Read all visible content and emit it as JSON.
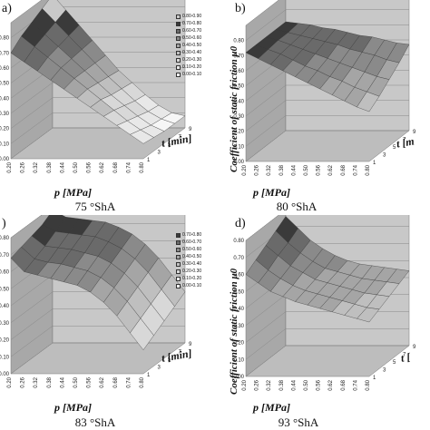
{
  "chart_data": [
    {
      "panel": "a)",
      "caption": "75 °ShA",
      "type": "surface",
      "xlabel": "p [MPa]",
      "ylabel": "",
      "zlabel": "",
      "p_ticks": [
        "0.20",
        "0.26",
        "0.32",
        "0.38",
        "0.44",
        "0.50",
        "0.56",
        "0.62",
        "0.68",
        "0.74",
        "0.80"
      ],
      "t_ticks": [
        "1",
        "3",
        "5",
        "7",
        "9"
      ],
      "z_ticks": [
        "0.00",
        "0.10",
        "0.20",
        "0.30",
        "0.40",
        "0.50",
        "0.60",
        "0.70",
        "0.80"
      ],
      "zlim": [
        0,
        0.9
      ],
      "legend": [
        "0.80-0.90",
        "0.70-0.80",
        "0.60-0.70",
        "0.50-0.60",
        "0.40-0.50",
        "0.30-0.40",
        "0.20-0.30",
        "0.10-0.20",
        "0.00-0.10"
      ],
      "surface": {
        "p": [
          0.2,
          0.26,
          0.32,
          0.38,
          0.44,
          0.5,
          0.56,
          0.62,
          0.68,
          0.74,
          0.8
        ],
        "t": [
          1,
          3,
          5,
          7,
          9
        ],
        "z_rows": [
          [
            0.7,
            0.64,
            0.58,
            0.52,
            0.46,
            0.4,
            0.34,
            0.28,
            0.22,
            0.16,
            0.1
          ],
          [
            0.76,
            0.69,
            0.62,
            0.55,
            0.48,
            0.41,
            0.34,
            0.27,
            0.2,
            0.14,
            0.09
          ],
          [
            0.8,
            0.72,
            0.64,
            0.56,
            0.48,
            0.4,
            0.32,
            0.25,
            0.18,
            0.12,
            0.08
          ],
          [
            0.84,
            0.75,
            0.66,
            0.57,
            0.48,
            0.39,
            0.31,
            0.23,
            0.16,
            0.11,
            0.08
          ],
          [
            0.88,
            0.78,
            0.68,
            0.58,
            0.48,
            0.38,
            0.3,
            0.22,
            0.15,
            0.1,
            0.08
          ]
        ]
      }
    },
    {
      "panel": "b)",
      "caption": "80 °ShA",
      "type": "surface",
      "xlabel": "p [MPa]",
      "ylabel": "Coefficient of static friction μ0",
      "zlabel": "",
      "tlabel": "t [m",
      "p_ticks": [
        "0.20",
        "0.26",
        "0.32",
        "0.38",
        "0.44",
        "0.50",
        "0.56",
        "0.62",
        "0.68",
        "0.74",
        "0.80"
      ],
      "t_ticks": [
        "1",
        "3",
        "5",
        "7",
        "9"
      ],
      "z_ticks": [
        "0.00",
        "0.10",
        "0.20",
        "0.30",
        "0.40",
        "0.50",
        "0.60",
        "0.70",
        "0.80"
      ],
      "zlim": [
        0,
        0.9
      ],
      "surface": {
        "p": [
          0.2,
          0.26,
          0.32,
          0.38,
          0.44,
          0.5,
          0.56,
          0.62,
          0.68,
          0.74,
          0.8
        ],
        "t": [
          1,
          3,
          5,
          7,
          9
        ],
        "z_rows": [
          [
            0.72,
            0.68,
            0.64,
            0.6,
            0.56,
            0.52,
            0.48,
            0.44,
            0.4,
            0.36,
            0.33
          ],
          [
            0.72,
            0.69,
            0.66,
            0.62,
            0.58,
            0.55,
            0.51,
            0.48,
            0.44,
            0.41,
            0.38
          ],
          [
            0.72,
            0.7,
            0.67,
            0.64,
            0.61,
            0.58,
            0.55,
            0.52,
            0.49,
            0.46,
            0.44
          ],
          [
            0.72,
            0.7,
            0.68,
            0.66,
            0.64,
            0.62,
            0.59,
            0.57,
            0.55,
            0.52,
            0.5
          ],
          [
            0.72,
            0.71,
            0.7,
            0.68,
            0.67,
            0.65,
            0.63,
            0.62,
            0.6,
            0.58,
            0.57
          ]
        ]
      }
    },
    {
      "panel": ")",
      "caption": "83 °ShA",
      "type": "surface",
      "xlabel": "p [MPa]",
      "tlabel": "t [min]",
      "p_ticks": [
        "0.20",
        "0.26",
        "0.32",
        "0.38",
        "0.44",
        "0.50",
        "0.56",
        "0.62",
        "0.68",
        "0.74",
        "0.80"
      ],
      "t_ticks": [
        "1",
        "3",
        "5",
        "7",
        "9"
      ],
      "z_ticks": [
        "0.00",
        "0.10",
        "0.20",
        "0.30",
        "0.40",
        "0.50",
        "0.60",
        "0.70",
        "0.80"
      ],
      "zlim": [
        0,
        0.8
      ],
      "legend": [
        "0.70-0.80",
        "0.60-0.70",
        "0.50-0.60",
        "0.40-0.50",
        "0.30-0.40",
        "0.20-0.30",
        "0.10-0.20",
        "0.00-0.10"
      ],
      "surface": {
        "p": [
          0.2,
          0.26,
          0.32,
          0.38,
          0.44,
          0.5,
          0.56,
          0.62,
          0.68,
          0.74,
          0.8
        ],
        "t": [
          1,
          3,
          5,
          7,
          9
        ],
        "z_rows": [
          [
            0.68,
            0.6,
            0.58,
            0.56,
            0.54,
            0.52,
            0.48,
            0.42,
            0.34,
            0.24,
            0.14
          ],
          [
            0.7,
            0.63,
            0.61,
            0.6,
            0.58,
            0.56,
            0.52,
            0.46,
            0.38,
            0.28,
            0.18
          ],
          [
            0.72,
            0.66,
            0.65,
            0.64,
            0.62,
            0.6,
            0.56,
            0.5,
            0.42,
            0.32,
            0.22
          ],
          [
            0.74,
            0.7,
            0.69,
            0.68,
            0.67,
            0.64,
            0.6,
            0.54,
            0.46,
            0.36,
            0.26
          ],
          [
            0.78,
            0.74,
            0.73,
            0.72,
            0.71,
            0.68,
            0.64,
            0.58,
            0.5,
            0.4,
            0.3
          ]
        ]
      }
    },
    {
      "panel": "d)",
      "caption": "93 °ShA",
      "type": "surface",
      "xlabel": "p [MPa]",
      "ylabel": "Coefficient of static friction μ0",
      "tlabel": "t [",
      "p_ticks": [
        "0.20",
        "0.26",
        "0.32",
        "0.38",
        "0.44",
        "0.50",
        "0.56",
        "0.62",
        "0.68",
        "0.74",
        "0.80"
      ],
      "t_ticks": [
        "1",
        "3",
        "5",
        "7",
        "9"
      ],
      "z_ticks": [
        "0.00",
        "0.10",
        "0.20",
        "0.30",
        "0.40",
        "0.50",
        "0.60",
        "0.70",
        "0.80"
      ],
      "zlim": [
        0,
        0.8
      ],
      "surface": {
        "p": [
          0.2,
          0.26,
          0.32,
          0.38,
          0.44,
          0.5,
          0.56,
          0.62,
          0.68,
          0.74,
          0.8
        ],
        "t": [
          1,
          3,
          5,
          7,
          9
        ],
        "z_rows": [
          [
            0.6,
            0.55,
            0.5,
            0.47,
            0.44,
            0.42,
            0.4,
            0.38,
            0.36,
            0.34,
            0.32
          ],
          [
            0.64,
            0.58,
            0.53,
            0.49,
            0.46,
            0.44,
            0.42,
            0.4,
            0.38,
            0.36,
            0.35
          ],
          [
            0.68,
            0.62,
            0.56,
            0.52,
            0.48,
            0.46,
            0.44,
            0.42,
            0.4,
            0.39,
            0.38
          ],
          [
            0.72,
            0.65,
            0.59,
            0.54,
            0.5,
            0.48,
            0.46,
            0.44,
            0.43,
            0.42,
            0.41
          ],
          [
            0.76,
            0.69,
            0.62,
            0.57,
            0.53,
            0.5,
            0.48,
            0.47,
            0.46,
            0.45,
            0.44
          ]
        ]
      }
    }
  ],
  "colors": {
    "wall": "#c8c8c8",
    "wall_dark": "#a8a8a8",
    "floor": "#bdbdbd",
    "band_dark": "#2a2a2a",
    "band_mid": "#8f8f8f",
    "band_light": "#cfcfcf",
    "band_white": "#f6f6f6",
    "mesh": "#333333"
  }
}
